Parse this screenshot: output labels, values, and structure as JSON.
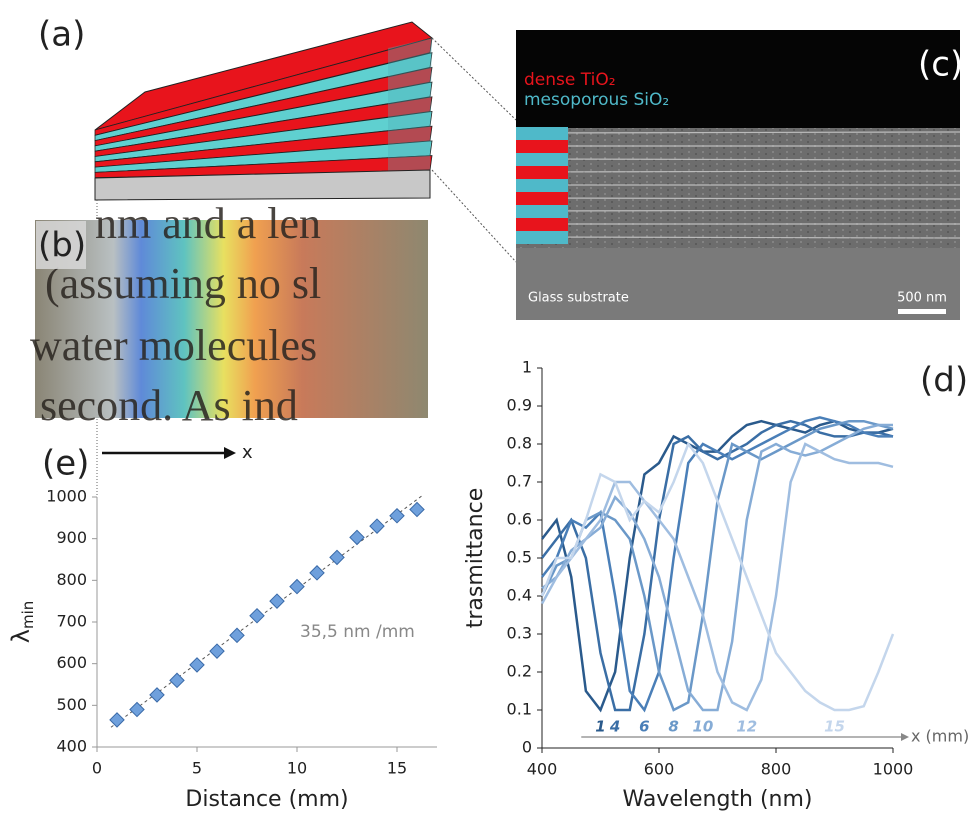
{
  "panels": {
    "a": "(a)",
    "b": "(b)",
    "c": "(c)",
    "d": "(d)",
    "e": "(e)"
  },
  "sem": {
    "dense": "dense TiO₂",
    "meso": "mesoporous SiO₂",
    "substrate": "Glass substrate",
    "scale": "500 nm"
  },
  "photo_text": [
    "nm and a len",
    "(assuming no sl",
    "water molecules",
    "second. As ind"
  ],
  "x_arrow": "x",
  "chart_data": [
    {
      "type": "scatter",
      "xlabel": "Distance (mm)",
      "ylabel": "λ",
      "ylabel_sub": "min",
      "annotation": "35,5  nm /mm",
      "color": "#6fa0dc",
      "trendline": true,
      "x": [
        1,
        2,
        3,
        4,
        5,
        6,
        7,
        8,
        9,
        10,
        11,
        12,
        13,
        14,
        15,
        16
      ],
      "values": [
        465,
        490,
        525,
        560,
        597,
        630,
        668,
        715,
        750,
        785,
        818,
        855,
        903,
        930,
        955,
        970
      ],
      "xlim": [
        0,
        17
      ],
      "xticks": [
        0,
        5,
        10,
        15
      ],
      "ylim": [
        400,
        1000
      ],
      "yticks": [
        400,
        500,
        600,
        700,
        800,
        900,
        1000
      ]
    },
    {
      "type": "line",
      "xlabel": "Wavelength (nm)",
      "ylabel": "trasmittance",
      "x_axis_label": "x (mm)",
      "x": [
        400,
        425,
        450,
        475,
        500,
        525,
        550,
        575,
        600,
        625,
        650,
        675,
        700,
        725,
        750,
        775,
        800,
        825,
        850,
        875,
        900,
        925,
        950,
        975,
        1000
      ],
      "series": [
        {
          "name": "1",
          "color": "#2a5a8c",
          "values": [
            0.55,
            0.6,
            0.45,
            0.15,
            0.1,
            0.2,
            0.5,
            0.72,
            0.75,
            0.82,
            0.8,
            0.78,
            0.78,
            0.82,
            0.85,
            0.86,
            0.85,
            0.84,
            0.83,
            0.85,
            0.86,
            0.84,
            0.83,
            0.83,
            0.84
          ]
        },
        {
          "name": "4",
          "color": "#3a6ea5",
          "values": [
            0.5,
            0.55,
            0.6,
            0.5,
            0.25,
            0.1,
            0.1,
            0.3,
            0.6,
            0.8,
            0.82,
            0.78,
            0.76,
            0.78,
            0.8,
            0.83,
            0.85,
            0.86,
            0.85,
            0.83,
            0.82,
            0.82,
            0.83,
            0.83,
            0.82
          ]
        },
        {
          "name": "6",
          "color": "#4a7fb8",
          "values": [
            0.45,
            0.5,
            0.6,
            0.58,
            0.62,
            0.4,
            0.15,
            0.1,
            0.2,
            0.5,
            0.75,
            0.8,
            0.78,
            0.76,
            0.78,
            0.8,
            0.82,
            0.84,
            0.86,
            0.87,
            0.86,
            0.85,
            0.83,
            0.82,
            0.82
          ]
        },
        {
          "name": "8",
          "color": "#6a98c8",
          "values": [
            0.4,
            0.48,
            0.5,
            0.6,
            0.62,
            0.6,
            0.55,
            0.4,
            0.2,
            0.1,
            0.12,
            0.35,
            0.65,
            0.8,
            0.78,
            0.76,
            0.78,
            0.8,
            0.82,
            0.84,
            0.85,
            0.86,
            0.86,
            0.85,
            0.84
          ]
        },
        {
          "name": "10",
          "color": "#86acd6",
          "values": [
            0.42,
            0.45,
            0.52,
            0.55,
            0.58,
            0.66,
            0.62,
            0.55,
            0.45,
            0.3,
            0.15,
            0.1,
            0.1,
            0.28,
            0.6,
            0.78,
            0.8,
            0.78,
            0.77,
            0.78,
            0.8,
            0.82,
            0.84,
            0.85,
            0.85
          ]
        },
        {
          "name": "12",
          "color": "#9fbde0",
          "values": [
            0.38,
            0.45,
            0.5,
            0.55,
            0.6,
            0.7,
            0.7,
            0.65,
            0.6,
            0.55,
            0.45,
            0.35,
            0.2,
            0.12,
            0.1,
            0.18,
            0.4,
            0.7,
            0.8,
            0.78,
            0.76,
            0.75,
            0.75,
            0.75,
            0.74
          ]
        },
        {
          "name": "15",
          "color": "#c4d6ec",
          "values": [
            0.4,
            0.5,
            0.5,
            0.6,
            0.72,
            0.7,
            0.6,
            0.65,
            0.62,
            0.7,
            0.8,
            0.75,
            0.65,
            0.55,
            0.45,
            0.35,
            0.25,
            0.2,
            0.15,
            0.12,
            0.1,
            0.1,
            0.11,
            0.2,
            0.3
          ]
        }
      ],
      "xlim": [
        400,
        1000
      ],
      "xticks": [
        400,
        600,
        800,
        1000
      ],
      "ylim": [
        0,
        1
      ],
      "yticks": [
        0,
        0.1,
        0.2,
        0.3,
        0.4,
        0.5,
        0.6,
        0.7,
        0.8,
        0.9,
        1
      ]
    }
  ]
}
